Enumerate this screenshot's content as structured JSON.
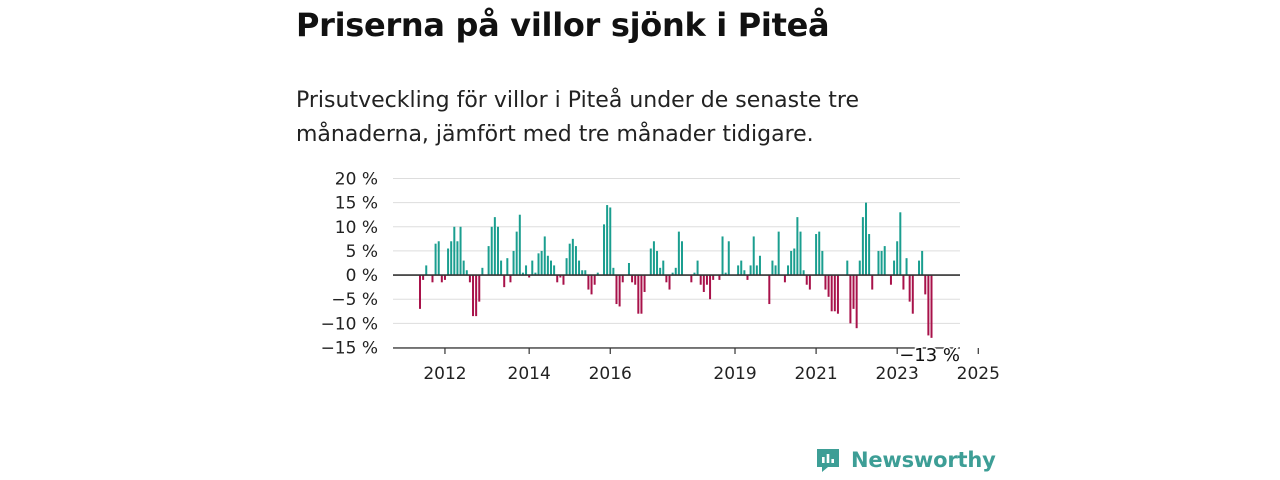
{
  "title": "Priserna på villor sjönk i Piteå",
  "subtitle": "Prisutveckling för villor i Piteå under de senaste tre månaderna, jämfört med tre månader tidigare.",
  "brand": {
    "name": "Newsworthy",
    "icon": "newsworthy-logo-icon"
  },
  "colors": {
    "positive": "#1a9e8f",
    "negative": "#a8124a",
    "grid": "#dddddd",
    "zero": "#333333"
  },
  "chart_data": {
    "type": "bar",
    "ylim": [
      -15,
      20
    ],
    "yticks": [
      20,
      15,
      10,
      5,
      0,
      -5,
      -10,
      -15
    ],
    "ytick_labels": [
      "20 %",
      "15 %",
      "10 %",
      "5 %",
      "0 %",
      "−5 %",
      "−10 %",
      "−15 %"
    ],
    "xtick_labels": [
      "2012",
      "2014",
      "2016",
      "2019",
      "2021",
      "2023",
      "2025"
    ],
    "xtick_indices": [
      8,
      35,
      61,
      101,
      127,
      153,
      179
    ],
    "last_label": "−13 %",
    "values": [
      -7,
      -1,
      2,
      0,
      -1.5,
      6.5,
      7,
      -1.5,
      -1,
      5.5,
      7,
      10,
      7,
      10,
      3,
      1,
      -1.5,
      -8.5,
      -8.5,
      -5.5,
      1.5,
      0,
      6,
      10,
      12,
      10,
      3,
      -2.5,
      3.5,
      -1.5,
      5,
      9,
      12.5,
      0.5,
      2,
      -0.5,
      3,
      0.5,
      4.5,
      5,
      8,
      4,
      3,
      2,
      -1.5,
      -0.5,
      -2,
      3.5,
      6.5,
      7.5,
      6,
      3,
      1,
      1,
      -3,
      -4,
      -2,
      0.5,
      0,
      10.5,
      14.5,
      14,
      1.5,
      -6,
      -6.5,
      -1.5,
      0,
      2.5,
      -1.5,
      -2,
      -8,
      -8,
      -3.5,
      0,
      5.5,
      7,
      5,
      1.5,
      3,
      -1.5,
      -3,
      0.5,
      1.5,
      9,
      7,
      0,
      0,
      -1.5,
      0.5,
      3,
      -2,
      -3.5,
      -2,
      -5,
      -1,
      0,
      -1,
      8,
      0.5,
      7,
      0,
      0,
      2,
      3,
      1,
      -1,
      2,
      8,
      2,
      4,
      0,
      0,
      -6,
      3,
      2,
      9,
      0,
      -1.5,
      2,
      5,
      5.5,
      12,
      9,
      1,
      -2,
      -3,
      0,
      8.5,
      9,
      5,
      -3,
      -4.5,
      -7.5,
      -7.5,
      -8,
      0,
      0,
      3,
      -10,
      -7,
      -11,
      3,
      12,
      15,
      8.5,
      -3,
      0,
      5,
      5,
      6,
      0,
      -2,
      3,
      7,
      13,
      -3,
      3.5,
      -5.5,
      -8,
      0,
      3,
      5,
      -4,
      -12.5,
      -13
    ]
  }
}
